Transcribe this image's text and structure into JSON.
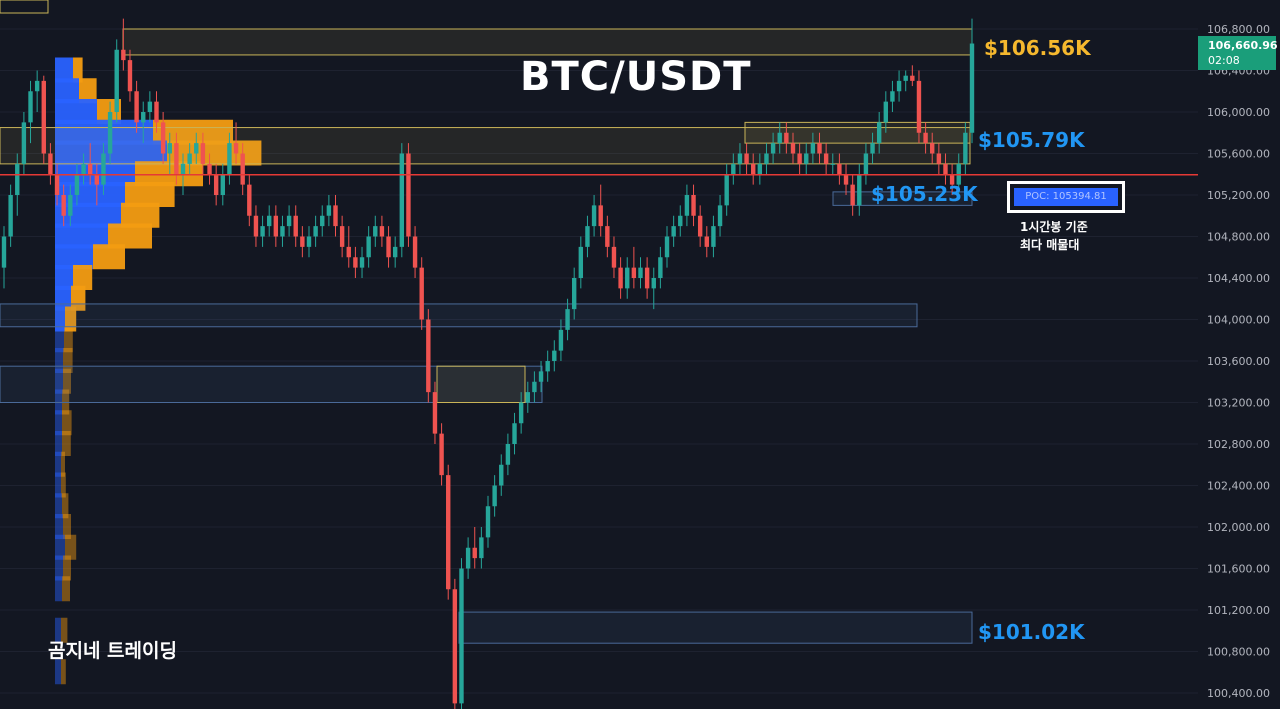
{
  "title": "BTC/USDT",
  "watermark": "곰지네 트레이딩",
  "colors": {
    "background": "#131722",
    "up": "#26a69a",
    "down": "#ef5350",
    "vp_buy": "#2962ff",
    "vp_sell": "#f39c12",
    "poc_line": "#e53935",
    "gold_label": "#f5b82e",
    "blue_label": "#2196f3",
    "zone_yellow": "#c9b458",
    "zone_blue": "#4a6a99"
  },
  "current_price": {
    "value": "106,660.96",
    "countdown": "02:08"
  },
  "poc_box": {
    "label": "POC: 105394.81",
    "caption_line1": "1시간봉 기준",
    "caption_line2": "최다 매물대"
  },
  "level_labels": [
    {
      "text": "$106.56K",
      "price": 106560,
      "color": "gold"
    },
    {
      "text": "$105.79K",
      "price": 105790,
      "color": "blue"
    },
    {
      "text": "$105.23K",
      "price": 105230,
      "color": "blue"
    },
    {
      "text": "$101.02K",
      "price": 101020,
      "color": "blue"
    }
  ],
  "chart_data": {
    "type": "candlestick",
    "title": "BTC/USDT",
    "ylim": [
      100200,
      107000
    ],
    "y_ticks": [
      "106,800.00",
      "106,400.00",
      "106,000.00",
      "105,600.00",
      "105,200.00",
      "104,800.00",
      "104,400.00",
      "104,000.00",
      "103,600.00",
      "103,200.00",
      "102,800.00",
      "102,400.00",
      "102,000.00",
      "101,600.00",
      "101,200.00",
      "100,800.00",
      "100,400.00"
    ],
    "y_tick_values": [
      106800,
      106400,
      106000,
      105600,
      105200,
      104800,
      104400,
      104000,
      103600,
      103200,
      102800,
      102400,
      102000,
      101600,
      101200,
      100800,
      100400
    ],
    "poc_price": 105394.81,
    "candles": [
      [
        104500,
        104900,
        104300,
        104800
      ],
      [
        104800,
        105300,
        104700,
        105200
      ],
      [
        105200,
        105600,
        105000,
        105500
      ],
      [
        105500,
        106000,
        105400,
        105900
      ],
      [
        105900,
        106300,
        105700,
        106200
      ],
      [
        106200,
        106400,
        106000,
        106300
      ],
      [
        106300,
        106350,
        105500,
        105600
      ],
      [
        105600,
        105700,
        105300,
        105400
      ],
      [
        105400,
        105500,
        105100,
        105200
      ],
      [
        105200,
        105300,
        104900,
        105000
      ],
      [
        105000,
        105300,
        104900,
        105200
      ],
      [
        105200,
        105500,
        105100,
        105400
      ],
      [
        105400,
        105600,
        105300,
        105500
      ],
      [
        105500,
        105700,
        105300,
        105400
      ],
      [
        105400,
        105500,
        105100,
        105300
      ],
      [
        105300,
        105700,
        105200,
        105600
      ],
      [
        105600,
        106100,
        105500,
        106000
      ],
      [
        106000,
        106700,
        105900,
        106600
      ],
      [
        106600,
        106900,
        106400,
        106500
      ],
      [
        106500,
        106600,
        106100,
        106200
      ],
      [
        106200,
        106300,
        105800,
        105900
      ],
      [
        105900,
        106100,
        105700,
        106000
      ],
      [
        106000,
        106200,
        105900,
        106100
      ],
      [
        106100,
        106200,
        105800,
        105900
      ],
      [
        105900,
        106000,
        105500,
        105600
      ],
      [
        105600,
        105800,
        105400,
        105700
      ],
      [
        105700,
        105800,
        105300,
        105400
      ],
      [
        105400,
        105600,
        105200,
        105500
      ],
      [
        105500,
        105700,
        105400,
        105600
      ],
      [
        105600,
        105800,
        105500,
        105700
      ],
      [
        105700,
        105800,
        105400,
        105500
      ],
      [
        105500,
        105600,
        105300,
        105400
      ],
      [
        105400,
        105500,
        105100,
        105200
      ],
      [
        105200,
        105500,
        105100,
        105400
      ],
      [
        105400,
        105800,
        105300,
        105700
      ],
      [
        105700,
        105900,
        105500,
        105600
      ],
      [
        105600,
        105700,
        105200,
        105300
      ],
      [
        105300,
        105400,
        104900,
        105000
      ],
      [
        105000,
        105100,
        104700,
        104800
      ],
      [
        104800,
        105000,
        104700,
        104900
      ],
      [
        104900,
        105100,
        104800,
        105000
      ],
      [
        105000,
        105100,
        104700,
        104800
      ],
      [
        104800,
        105000,
        104700,
        104900
      ],
      [
        104900,
        105100,
        104800,
        105000
      ],
      [
        105000,
        105100,
        104700,
        104800
      ],
      [
        104800,
        104900,
        104600,
        104700
      ],
      [
        104700,
        104900,
        104600,
        104800
      ],
      [
        104800,
        105000,
        104700,
        104900
      ],
      [
        104900,
        105100,
        104800,
        105000
      ],
      [
        105000,
        105200,
        104900,
        105100
      ],
      [
        105100,
        105200,
        104800,
        104900
      ],
      [
        104900,
        105000,
        104600,
        104700
      ],
      [
        104700,
        104900,
        104500,
        104600
      ],
      [
        104600,
        104700,
        104400,
        104500
      ],
      [
        104500,
        104700,
        104400,
        104600
      ],
      [
        104600,
        104900,
        104500,
        104800
      ],
      [
        104800,
        105000,
        104700,
        104900
      ],
      [
        104900,
        105000,
        104700,
        104800
      ],
      [
        104800,
        104900,
        104500,
        104600
      ],
      [
        104600,
        104800,
        104500,
        104700
      ],
      [
        104700,
        105700,
        104600,
        105600
      ],
      [
        105600,
        105700,
        104700,
        104800
      ],
      [
        104800,
        104900,
        104400,
        104500
      ],
      [
        104500,
        104600,
        103900,
        104000
      ],
      [
        104000,
        104100,
        103200,
        103300
      ],
      [
        103300,
        103400,
        102800,
        102900
      ],
      [
        102900,
        103000,
        102400,
        102500
      ],
      [
        102500,
        102600,
        101300,
        101400
      ],
      [
        101400,
        101500,
        100200,
        100300
      ],
      [
        100300,
        101700,
        100200,
        101600
      ],
      [
        101600,
        101900,
        101500,
        101800
      ],
      [
        101800,
        102000,
        101600,
        101700
      ],
      [
        101700,
        102000,
        101600,
        101900
      ],
      [
        101900,
        102300,
        101800,
        102200
      ],
      [
        102200,
        102500,
        102100,
        102400
      ],
      [
        102400,
        102700,
        102300,
        102600
      ],
      [
        102600,
        102900,
        102500,
        102800
      ],
      [
        102800,
        103100,
        102700,
        103000
      ],
      [
        103000,
        103300,
        102900,
        103200
      ],
      [
        103200,
        103400,
        103100,
        103300
      ],
      [
        103300,
        103500,
        103200,
        103400
      ],
      [
        103400,
        103600,
        103300,
        103500
      ],
      [
        103500,
        103700,
        103400,
        103600
      ],
      [
        103600,
        103800,
        103500,
        103700
      ],
      [
        103700,
        104000,
        103600,
        103900
      ],
      [
        103900,
        104200,
        103800,
        104100
      ],
      [
        104100,
        104500,
        104000,
        104400
      ],
      [
        104400,
        104800,
        104300,
        104700
      ],
      [
        104700,
        105000,
        104600,
        104900
      ],
      [
        104900,
        105200,
        104800,
        105100
      ],
      [
        105100,
        105300,
        104800,
        104900
      ],
      [
        104900,
        105000,
        104600,
        104700
      ],
      [
        104700,
        104800,
        104400,
        104500
      ],
      [
        104500,
        104600,
        104200,
        104300
      ],
      [
        104300,
        104600,
        104200,
        104500
      ],
      [
        104500,
        104700,
        104300,
        104400
      ],
      [
        104400,
        104600,
        104300,
        104500
      ],
      [
        104500,
        104600,
        104200,
        104300
      ],
      [
        104300,
        104500,
        104100,
        104400
      ],
      [
        104400,
        104700,
        104300,
        104600
      ],
      [
        104600,
        104900,
        104500,
        104800
      ],
      [
        104800,
        105000,
        104700,
        104900
      ],
      [
        104900,
        105100,
        104800,
        105000
      ],
      [
        105000,
        105300,
        104900,
        105200
      ],
      [
        105200,
        105300,
        104900,
        105000
      ],
      [
        105000,
        105100,
        104700,
        104800
      ],
      [
        104800,
        104900,
        104600,
        104700
      ],
      [
        104700,
        105000,
        104600,
        104900
      ],
      [
        104900,
        105200,
        104800,
        105100
      ],
      [
        105100,
        105500,
        105000,
        105400
      ],
      [
        105400,
        105600,
        105300,
        105500
      ],
      [
        105500,
        105700,
        105400,
        105600
      ],
      [
        105600,
        105700,
        105400,
        105500
      ],
      [
        105500,
        105600,
        105300,
        105400
      ],
      [
        105400,
        105600,
        105300,
        105500
      ],
      [
        105500,
        105700,
        105400,
        105600
      ],
      [
        105600,
        105800,
        105500,
        105700
      ],
      [
        105700,
        105900,
        105600,
        105800
      ],
      [
        105800,
        105900,
        105600,
        105700
      ],
      [
        105700,
        105800,
        105500,
        105600
      ],
      [
        105600,
        105700,
        105400,
        105500
      ],
      [
        105500,
        105700,
        105400,
        105600
      ],
      [
        105600,
        105800,
        105500,
        105700
      ],
      [
        105700,
        105800,
        105500,
        105600
      ],
      [
        105600,
        105700,
        105400,
        105500
      ],
      [
        105500,
        105600,
        105400,
        105500
      ],
      [
        105500,
        105600,
        105300,
        105400
      ],
      [
        105400,
        105500,
        105200,
        105300
      ],
      [
        105300,
        105400,
        105000,
        105100
      ],
      [
        105100,
        105500,
        105000,
        105400
      ],
      [
        105400,
        105700,
        105300,
        105600
      ],
      [
        105600,
        105800,
        105500,
        105700
      ],
      [
        105700,
        106000,
        105600,
        105900
      ],
      [
        105900,
        106200,
        105800,
        106100
      ],
      [
        106100,
        106300,
        106000,
        106200
      ],
      [
        106200,
        106400,
        106100,
        106300
      ],
      [
        106300,
        106400,
        106200,
        106350
      ],
      [
        106350,
        106450,
        106250,
        106300
      ],
      [
        106300,
        106400,
        105700,
        105800
      ],
      [
        105800,
        105900,
        105600,
        105700
      ],
      [
        105700,
        105800,
        105500,
        105600
      ],
      [
        105600,
        105700,
        105400,
        105500
      ],
      [
        105500,
        105600,
        105300,
        105400
      ],
      [
        105400,
        105500,
        105200,
        105300
      ],
      [
        105300,
        105600,
        105200,
        105500
      ],
      [
        105500,
        105900,
        105400,
        105800
      ],
      [
        105800,
        106900,
        105700,
        106660
      ]
    ],
    "volume_profile": [
      {
        "price": 106400,
        "buy": 0.18,
        "sell": 0.12
      },
      {
        "price": 106200,
        "buy": 0.24,
        "sell": 0.22
      },
      {
        "price": 106000,
        "buy": 0.42,
        "sell": 0.3
      },
      {
        "price": 105800,
        "buy": 0.98,
        "sell": 1.0
      },
      {
        "price": 105600,
        "buy": 1.12,
        "sell": 1.18
      },
      {
        "price": 105400,
        "buy": 0.8,
        "sell": 0.85
      },
      {
        "price": 105200,
        "buy": 0.7,
        "sell": 0.62
      },
      {
        "price": 105000,
        "buy": 0.66,
        "sell": 0.48
      },
      {
        "price": 104800,
        "buy": 0.53,
        "sell": 0.55
      },
      {
        "price": 104600,
        "buy": 0.38,
        "sell": 0.4
      },
      {
        "price": 104400,
        "buy": 0.18,
        "sell": 0.24
      },
      {
        "price": 104200,
        "buy": 0.16,
        "sell": 0.18
      },
      {
        "price": 104000,
        "buy": 0.1,
        "sell": 0.14
      },
      {
        "price": 103800,
        "buy": 0.09,
        "sell": 0.11
      },
      {
        "price": 103600,
        "buy": 0.08,
        "sell": 0.12
      },
      {
        "price": 103400,
        "buy": 0.08,
        "sell": 0.1
      },
      {
        "price": 103200,
        "buy": 0.07,
        "sell": 0.09
      },
      {
        "price": 103000,
        "buy": 0.07,
        "sell": 0.12
      },
      {
        "price": 102800,
        "buy": 0.07,
        "sell": 0.11
      },
      {
        "price": 102600,
        "buy": 0.06,
        "sell": 0.05
      },
      {
        "price": 102400,
        "buy": 0.06,
        "sell": 0.06
      },
      {
        "price": 102200,
        "buy": 0.07,
        "sell": 0.08
      },
      {
        "price": 102000,
        "buy": 0.08,
        "sell": 0.1
      },
      {
        "price": 101800,
        "buy": 0.1,
        "sell": 0.14
      },
      {
        "price": 101600,
        "buy": 0.08,
        "sell": 0.1
      },
      {
        "price": 101400,
        "buy": 0.07,
        "sell": 0.1
      },
      {
        "price": 101000,
        "buy": 0.06,
        "sell": 0.08
      },
      {
        "price": 100600,
        "buy": 0.06,
        "sell": 0.06
      }
    ],
    "zones": [
      {
        "top": 106800,
        "bottom": 106550,
        "color": "yellow"
      },
      {
        "top": 105850,
        "bottom": 105500,
        "color": "yellow"
      },
      {
        "top": 105900,
        "bottom": 105700,
        "color": "yellow"
      },
      {
        "top": 105230,
        "bottom": 105100,
        "color": "blue"
      },
      {
        "top": 104150,
        "bottom": 103930,
        "color": "blue"
      },
      {
        "top": 103550,
        "bottom": 103200,
        "color": "blue"
      },
      {
        "top": 103550,
        "bottom": 103200,
        "color": "yellow"
      },
      {
        "top": 101180,
        "bottom": 100880,
        "color": "blue"
      }
    ]
  }
}
